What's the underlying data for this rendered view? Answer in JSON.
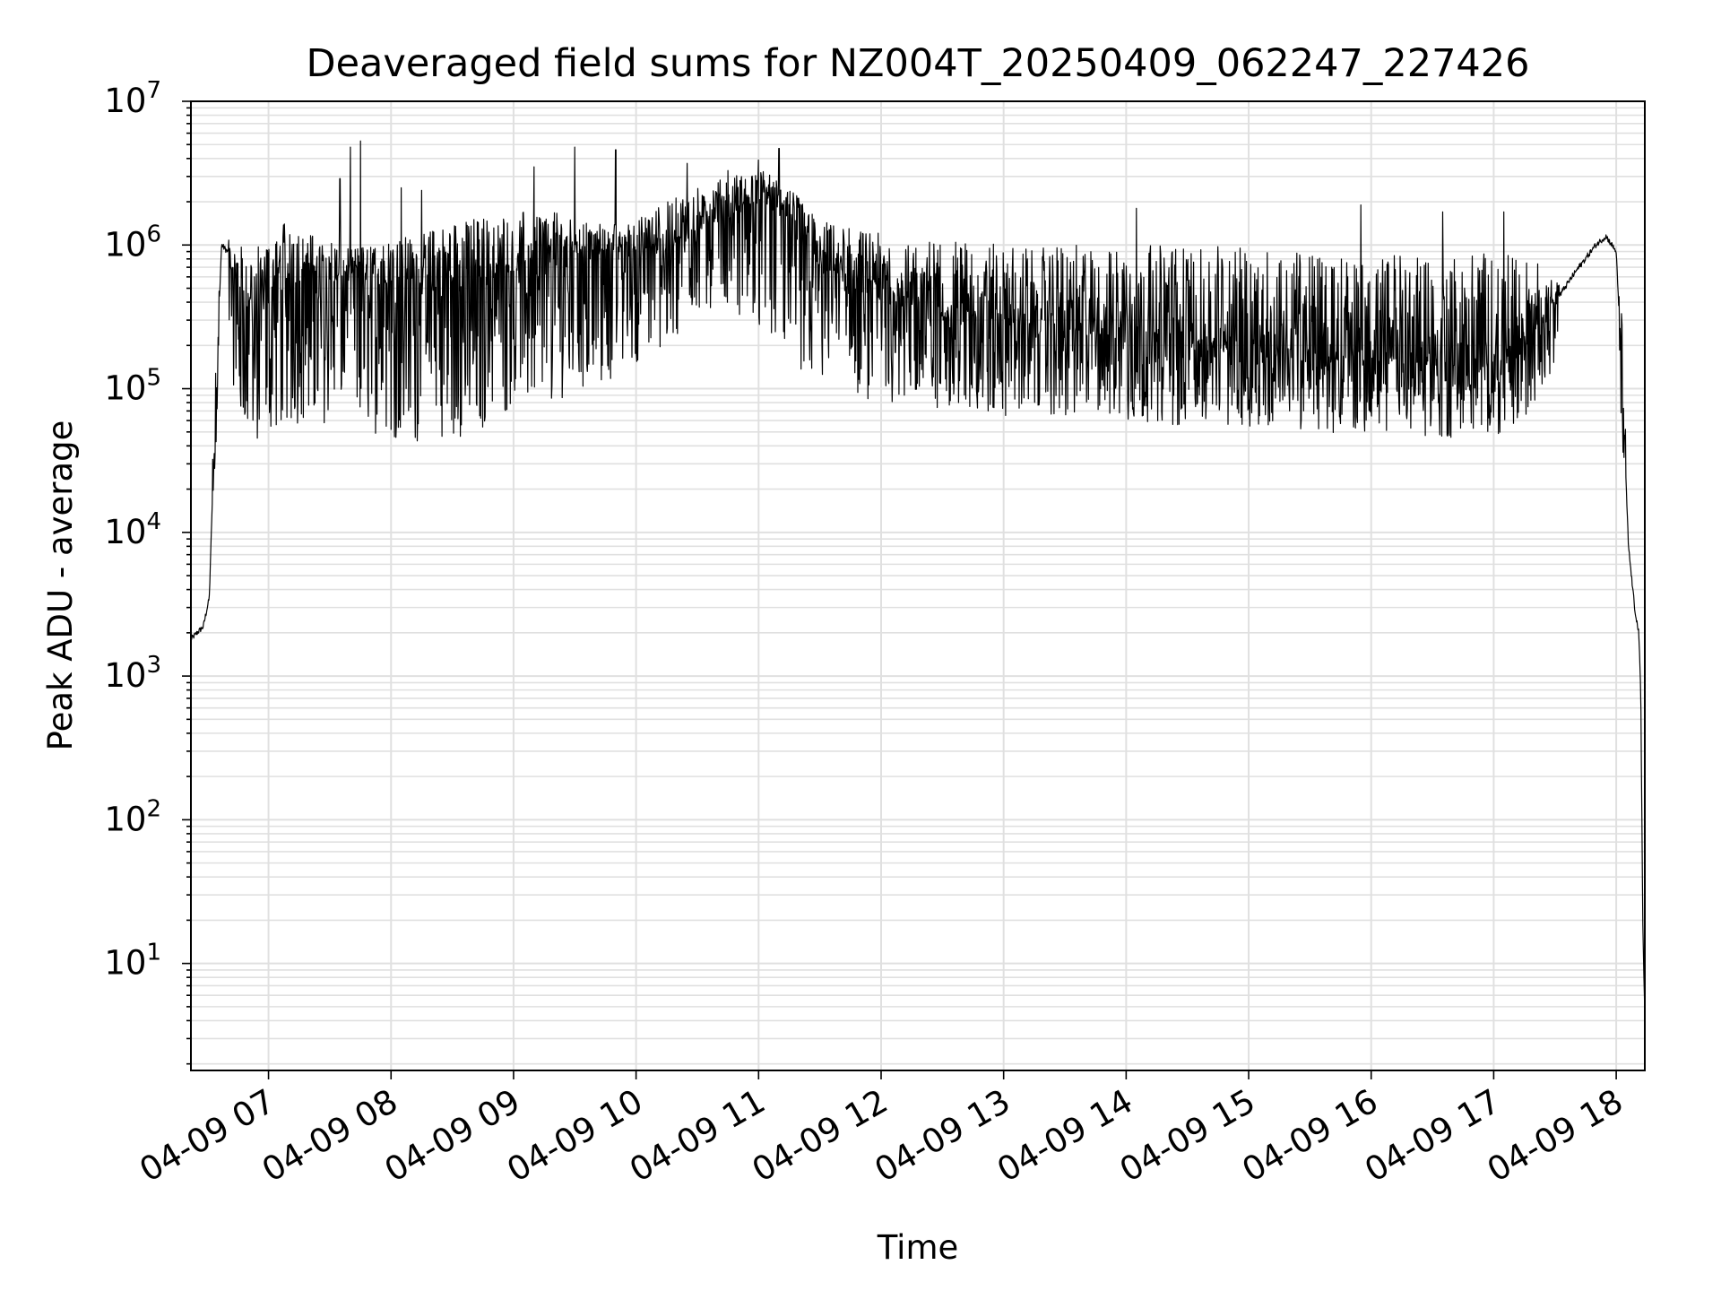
{
  "chart_data": {
    "type": "line",
    "title": "Deaveraged field sums for NZ004T_20250409_062247_227426",
    "xlabel": "Time",
    "ylabel": "Peak ADU - average",
    "y_scale": "log",
    "x_scale": "time",
    "xlim": [
      "2025-04-09 06:22",
      "2025-04-09 18:14"
    ],
    "ylim": [
      1.8,
      10000000
    ],
    "grid": "major and minor",
    "x_tick_labels": [
      "04-09 07",
      "04-09 08",
      "04-09 09",
      "04-09 10",
      "04-09 11",
      "04-09 12",
      "04-09 13",
      "04-09 14",
      "04-09 15",
      "04-09 16",
      "04-09 17",
      "04-09 18"
    ],
    "y_tick_labels": [
      {
        "base": "10",
        "exp": "1"
      },
      {
        "base": "10",
        "exp": "2"
      },
      {
        "base": "10",
        "exp": "3"
      },
      {
        "base": "10",
        "exp": "4"
      },
      {
        "base": "10",
        "exp": "5"
      },
      {
        "base": "10",
        "exp": "6"
      },
      {
        "base": "10",
        "exp": "7"
      }
    ],
    "line_color": "#000000",
    "grid_color": "#e0e0e0",
    "series": [
      {
        "x": [
          "06:22",
          "06:25",
          "06:28",
          "06:31",
          "06:34",
          "06:37",
          "06:40",
          "06:43",
          "06:46",
          "06:50",
          "06:55",
          "07:00",
          "07:10",
          "07:20",
          "07:30",
          "07:40",
          "07:50",
          "08:00",
          "08:15",
          "08:30",
          "08:45",
          "09:00",
          "09:15",
          "09:30",
          "09:45",
          "10:00",
          "10:15",
          "10:30",
          "10:45",
          "11:00",
          "11:15",
          "11:30",
          "11:45",
          "12:00",
          "12:30",
          "13:00",
          "13:30",
          "14:00",
          "14:30",
          "15:00",
          "15:30",
          "16:00",
          "16:30",
          "17:00",
          "17:15",
          "17:30",
          "17:40",
          "17:50",
          "17:55",
          "18:00",
          "18:03",
          "18:06",
          "18:09",
          "18:11",
          "18:12",
          "18:13",
          "18:14"
        ],
        "envelope_low": [
          1000,
          1500,
          2000,
          3000,
          20000,
          500000,
          300000,
          100000,
          60000,
          50000,
          40000,
          45000,
          60000,
          50000,
          60000,
          70000,
          50000,
          45000,
          40000,
          45000,
          50000,
          70000,
          80000,
          90000,
          100000,
          150000,
          200000,
          300000,
          400000,
          200000,
          150000,
          100000,
          90000,
          80000,
          70000,
          65000,
          60000,
          60000,
          55000,
          55000,
          50000,
          45000,
          45000,
          45000,
          55000,
          150000,
          400000,
          800000,
          900000,
          600000,
          30000,
          5000,
          2500,
          1800,
          500,
          10,
          4
        ],
        "envelope_mid": [
          1800,
          2000,
          2200,
          3500,
          80000,
          1000000,
          900000,
          500000,
          350000,
          300000,
          300000,
          400000,
          500000,
          600000,
          550000,
          500000,
          500000,
          550000,
          450000,
          450000,
          500000,
          650000,
          700000,
          800000,
          850000,
          800000,
          900000,
          1200000,
          1500000,
          2000000,
          1500000,
          700000,
          500000,
          400000,
          300000,
          250000,
          230000,
          220000,
          200000,
          180000,
          150000,
          150000,
          140000,
          140000,
          200000,
          400000,
          650000,
          1000000,
          1150000,
          900000,
          100000,
          8000,
          3000,
          2000,
          800,
          20,
          4
        ],
        "envelope_high": [
          2500,
          2700,
          2800,
          5000,
          200000,
          1200000,
          1100000,
          1000000,
          1000000,
          1000000,
          1000000,
          1200000,
          1500000,
          1200000,
          1100000,
          1000000,
          1000000,
          1100000,
          1200000,
          1500000,
          1600000,
          1700000,
          1800000,
          1500000,
          1400000,
          1500000,
          2000000,
          2500000,
          3000000,
          3500000,
          2500000,
          1500000,
          1300000,
          1200000,
          1100000,
          1000000,
          1000000,
          1000000,
          1000000,
          950000,
          900000,
          900000,
          900000,
          900000,
          800000,
          700000,
          900000,
          1150000,
          1200000,
          1050000,
          300000,
          12000,
          4500,
          2500,
          1500,
          40,
          4
        ],
        "spikes": [
          {
            "t": "07:45",
            "y": 5300000
          },
          {
            "t": "07:40",
            "y": 4800000
          },
          {
            "t": "07:35",
            "y": 2900000
          },
          {
            "t": "08:05",
            "y": 2500000
          },
          {
            "t": "08:15",
            "y": 2400000
          },
          {
            "t": "09:10",
            "y": 3500000
          },
          {
            "t": "09:30",
            "y": 4800000
          },
          {
            "t": "09:50",
            "y": 4600000
          },
          {
            "t": "10:25",
            "y": 3700000
          },
          {
            "t": "10:45",
            "y": 3300000
          },
          {
            "t": "11:00",
            "y": 3900000
          },
          {
            "t": "11:10",
            "y": 4700000
          },
          {
            "t": "14:05",
            "y": 1800000
          },
          {
            "t": "15:55",
            "y": 1900000
          },
          {
            "t": "16:35",
            "y": 1700000
          },
          {
            "t": "17:05",
            "y": 1700000
          }
        ]
      }
    ]
  }
}
